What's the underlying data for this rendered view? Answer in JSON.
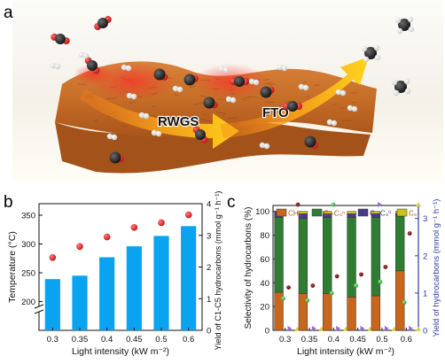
{
  "panel_a": {
    "label": "a",
    "arrow_labels": [
      "RWGS",
      "FTO"
    ]
  },
  "panel_b": {
    "label": "b"
  },
  "panel_c": {
    "label": "c"
  },
  "colors": {
    "bar_blue": "#0aa3ef",
    "dot_red": "#d91f1f",
    "ch4": "#c8661c",
    "c2c4_eq": "#2e7d32",
    "c2c4_ole": "#4a3a8c",
    "c5plus": "#c9c41a",
    "axis_blue": "#2b3aa8",
    "dot_darkred": "#7a1a1a",
    "dot_green": "#49c149",
    "tri_purple": "#9b6bd6",
    "tri_yellow": "#d9cf3a"
  },
  "chart_data": [
    {
      "type": "bar",
      "categories": [
        "0.3",
        "0.35",
        "0.4",
        "0.45",
        "0.5",
        "0.6"
      ],
      "xlabel": "Light intensity (kW m⁻²)",
      "ylabel": "Temperature (°C)",
      "ylim": [
        150,
        370
      ],
      "yticks": [
        200,
        250,
        300,
        350
      ],
      "y2label": "Yield of C1-C5 hydrocarbons (mmol g⁻¹ h⁻¹)",
      "y2lim": [
        0,
        4
      ],
      "y2ticks": [
        0,
        1,
        2,
        3,
        4
      ],
      "series": [
        {
          "values": [
            239,
            245,
            277,
            296,
            314,
            331
          ]
        },
        {
          "values": [
            2.3,
            2.65,
            2.95,
            3.25,
            3.4,
            3.65
          ]
        }
      ]
    },
    {
      "type": "bar",
      "categories": [
        "0.3",
        "0.35",
        "0.4",
        "0.45",
        "0.5",
        "0.6"
      ],
      "xlabel": "Light intensity (kW m⁻²)",
      "ylabel": "Selectivity of hydrocarbons (%)",
      "ylim": [
        0,
        105
      ],
      "yticks": [
        0,
        20,
        40,
        60,
        80,
        100
      ],
      "y2label": "Yield of hydrocarbons (mmol g⁻¹ h⁻¹)",
      "y2lim": [
        0,
        3.35
      ],
      "y2ticks": [
        0,
        1,
        2,
        3
      ],
      "legend": [
        "CH₄",
        "C₂-C₄ⁿ",
        "C₂-C₄⁰",
        "C₅₊"
      ],
      "legend_placement": "top",
      "stacked": true,
      "series": [
        {
          "name": "CH₄",
          "values": [
            32,
            31,
            31,
            28,
            29,
            50
          ]
        },
        {
          "name": "C₂-C₄ⁿ",
          "values": [
            63,
            63,
            64,
            67,
            66,
            46
          ]
        },
        {
          "name": "C₂-C₄⁰",
          "values": [
            5,
            4,
            3,
            3,
            3,
            2
          ]
        },
        {
          "name": "C₅₊",
          "values": [
            0,
            2,
            2,
            2,
            2,
            2
          ]
        },
        {
          "values": [
            1.15,
            1.2,
            1.45,
            1.5,
            1.7,
            2.6
          ]
        },
        {
          "values": [
            0.85,
            0.8,
            1.0,
            1.2,
            1.3,
            0.75
          ]
        },
        {
          "values": [
            0.05,
            0.05,
            0.05,
            0.05,
            0.05,
            0.05
          ]
        },
        {
          "values": [
            0.03,
            0.03,
            0.03,
            0.03,
            0.03,
            0.03
          ]
        }
      ]
    }
  ]
}
